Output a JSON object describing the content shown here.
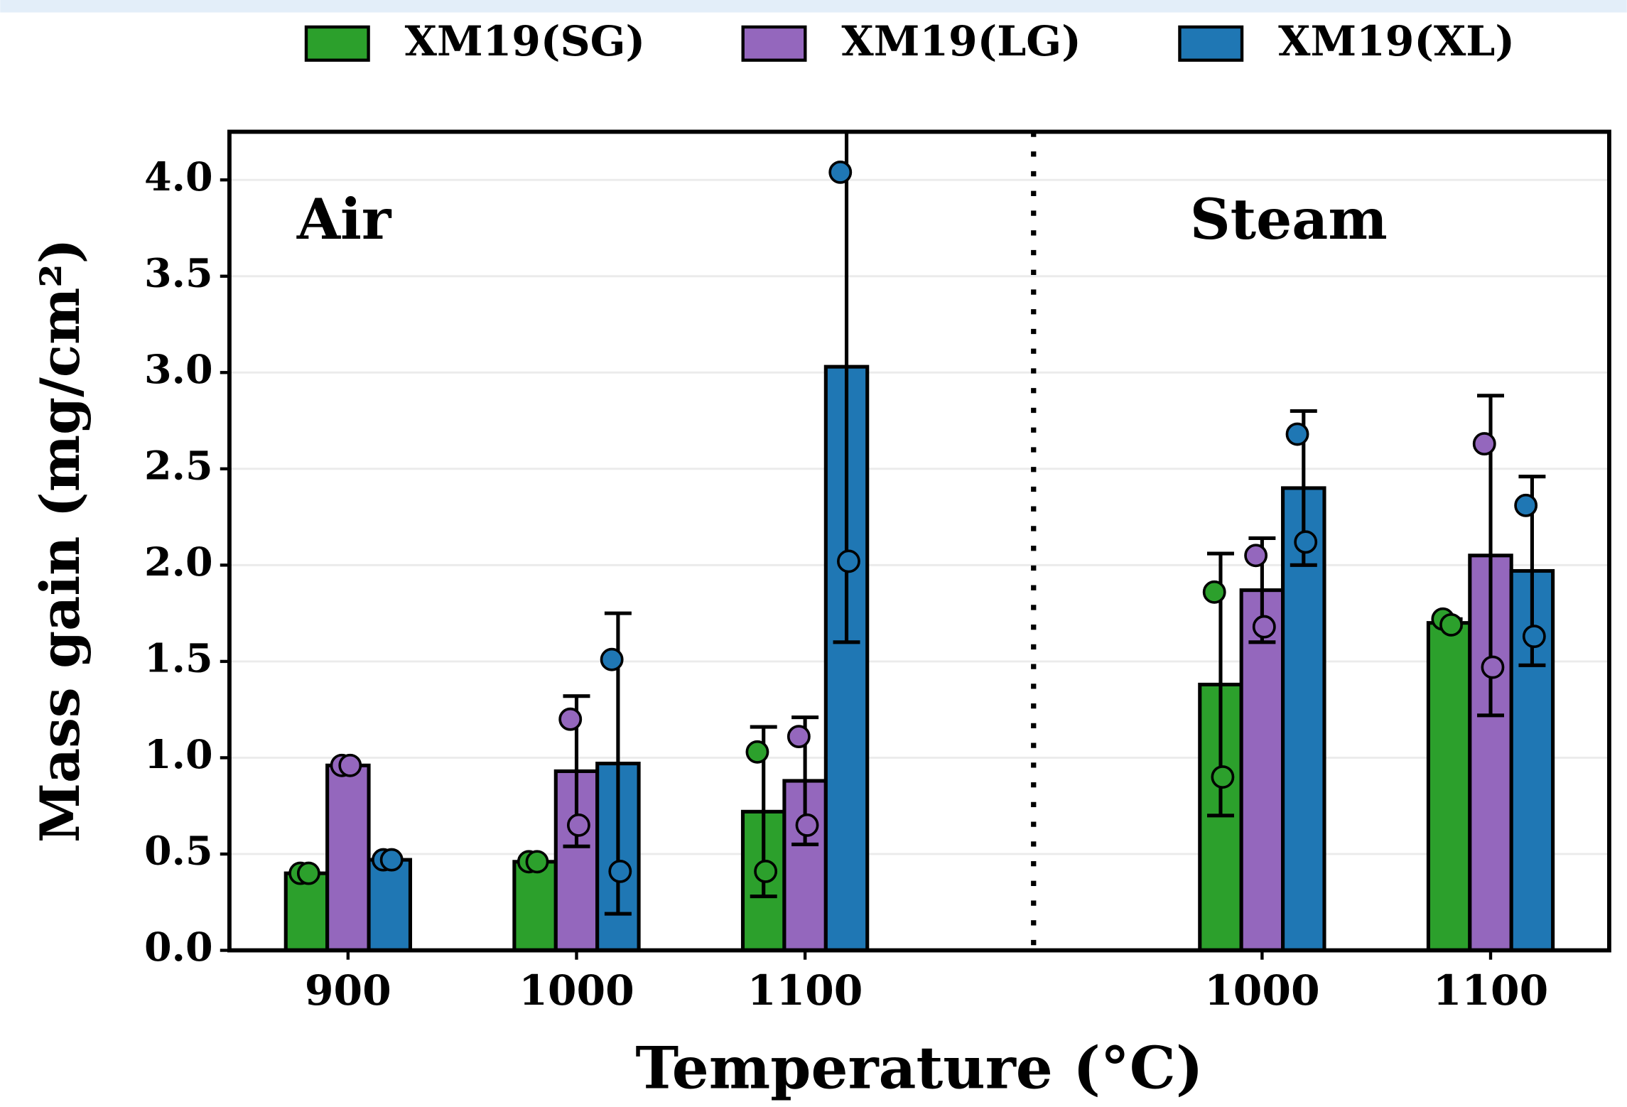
{
  "chart_data": {
    "type": "bar",
    "x_label": "Temperature (°C)",
    "y_label": "Mass gain (mg/cm²)",
    "annotations": [
      "Air",
      "Steam"
    ],
    "categories": [
      "900",
      "1000",
      "1100",
      null,
      "1000",
      "1100"
    ],
    "series": [
      {
        "name": "XM19(SG)",
        "color": "#2ca02c",
        "values": [
          0.4,
          0.46,
          0.72,
          null,
          1.38,
          1.7
        ],
        "errors": [
          0,
          0,
          0.44,
          null,
          0.68,
          0.02
        ],
        "points": [
          [
            0.4,
            0.4
          ],
          [
            0.46,
            0.46
          ],
          [
            1.03,
            0.41
          ],
          null,
          [
            1.86,
            0.9
          ],
          [
            1.72,
            1.69
          ]
        ]
      },
      {
        "name": "XM19(LG)",
        "color": "#9467bd",
        "values": [
          0.96,
          0.93,
          0.88,
          null,
          1.87,
          2.05
        ],
        "errors": [
          0,
          0.39,
          0.33,
          null,
          0.27,
          0.83
        ],
        "points": [
          [
            0.96,
            0.96
          ],
          [
            1.2,
            0.65
          ],
          [
            1.11,
            0.65
          ],
          null,
          [
            2.05,
            1.68
          ],
          [
            2.63,
            1.47
          ]
        ]
      },
      {
        "name": "XM19(XL)",
        "color": "#1f77b4",
        "values": [
          0.47,
          0.97,
          3.03,
          null,
          2.4,
          1.97
        ],
        "errors": [
          0,
          0.78,
          1.43,
          null,
          0.4,
          0.49
        ],
        "points": [
          [
            0.47,
            0.47
          ],
          [
            1.51,
            0.41
          ],
          [
            4.04,
            2.02
          ],
          null,
          [
            2.68,
            2.12
          ],
          [
            2.31,
            1.63
          ]
        ]
      }
    ],
    "ylim": [
      0,
      4.25
    ],
    "yticks": [
      {
        "value": 0,
        "label": "0.0"
      },
      0.5,
      {
        "value": 1,
        "label": "1.0"
      },
      1.5,
      {
        "value": 2,
        "label": "2.0"
      },
      2.5,
      {
        "value": 3,
        "label": "3.0"
      },
      3.5,
      {
        "value": 4,
        "label": "4.0"
      }
    ],
    "grid": true,
    "legend": "top"
  }
}
